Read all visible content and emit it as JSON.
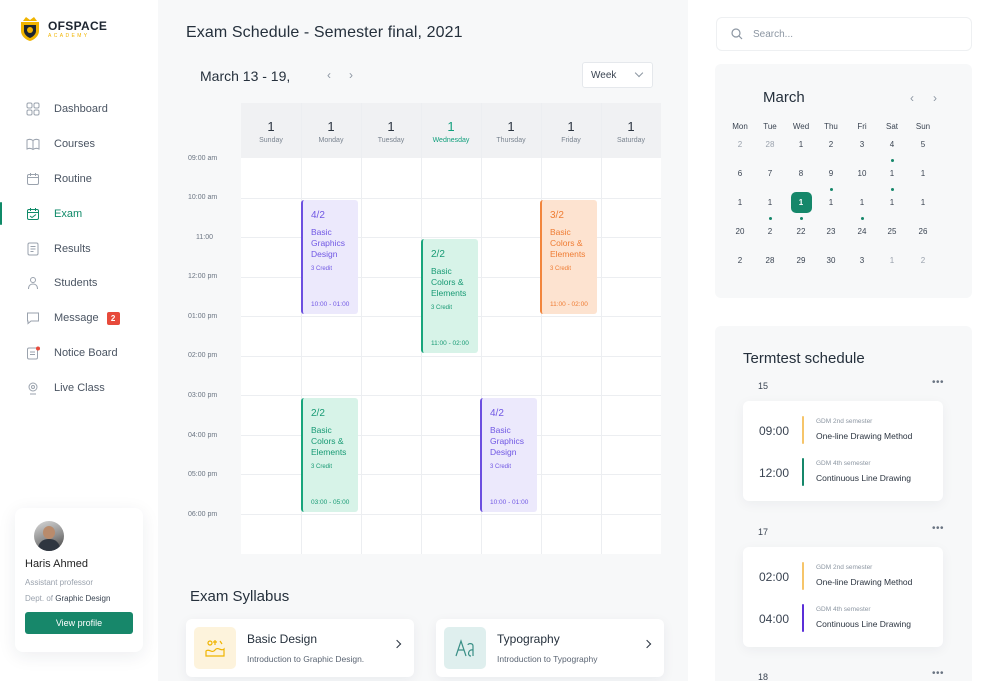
{
  "brand": {
    "name": "OFSPACE",
    "sub": "ACADEMY",
    "accent": "#15876a",
    "logo_color": "#f0b400"
  },
  "sidebar": {
    "items": [
      {
        "label": "Dashboard",
        "icon": "dashboard-icon"
      },
      {
        "label": "Courses",
        "icon": "book-icon"
      },
      {
        "label": "Routine",
        "icon": "routine-icon"
      },
      {
        "label": "Exam",
        "icon": "exam-icon",
        "active": true
      },
      {
        "label": "Results",
        "icon": "results-icon"
      },
      {
        "label": "Students",
        "icon": "students-icon"
      },
      {
        "label": "Message",
        "icon": "message-icon",
        "badge": "2"
      },
      {
        "label": "Notice Board",
        "icon": "notice-board-icon"
      },
      {
        "label": "Live Class",
        "icon": "live-class-icon"
      }
    ]
  },
  "profile": {
    "name": "Haris Ahmed",
    "role": "Assistant professor",
    "dept_prefix": "Dept. of",
    "dept": "Graphic Design",
    "button": "View profile"
  },
  "main": {
    "title": "Exam Schedule - Semester final,  2021",
    "week_range": "March 13 - 19,",
    "view_select": "Week",
    "times": [
      "09:00 am",
      "10:00 am",
      "11:00",
      "12:00 pm",
      "01:00 pm",
      "02:00 pm",
      "03:00 pm",
      "04:00 pm",
      "05:00 pm",
      "06:00 pm"
    ],
    "days": [
      {
        "num": "1",
        "name": "Sunday"
      },
      {
        "num": "1",
        "name": "Monday"
      },
      {
        "num": "1",
        "name": "Tuesday"
      },
      {
        "num": "1",
        "name": "Wednesday",
        "today": true
      },
      {
        "num": "1",
        "name": "Thursday"
      },
      {
        "num": "1",
        "name": "Friday"
      },
      {
        "num": "1",
        "name": "Saturday"
      }
    ],
    "events": [
      {
        "frac": "4/2",
        "title": "Basic Graphics Design",
        "credit": "3 Credit",
        "time": "10:00 - 01:00",
        "color": "purple"
      },
      {
        "frac": "2/2",
        "title": "Basic Colors & Elements",
        "credit": "3 Credit",
        "time": "11:00 - 02:00",
        "color": "green"
      },
      {
        "frac": "3/2",
        "title": "Basic Colors & Elements",
        "credit": "3 Credit",
        "time": "11:00 - 02:00",
        "color": "orange"
      },
      {
        "frac": "2/2",
        "title": "Basic Colors & Elements",
        "credit": "3 Credit",
        "time": "03:00 - 05:00",
        "color": "green"
      },
      {
        "frac": "4/2",
        "title": "Basic Graphics Design",
        "credit": "3 Credit",
        "time": "10:00 - 01:00",
        "color": "purple"
      }
    ],
    "syllabus_title": "Exam Syllabus",
    "syllabus": [
      {
        "name": "Basic Design",
        "desc": "Introduction to Graphic Design."
      },
      {
        "name": "Typography",
        "desc": "Introduction to Typography"
      }
    ]
  },
  "right": {
    "search_placeholder": "Search...",
    "calendar": {
      "month": "March",
      "dow": [
        "Mon",
        "Tue",
        "Wed",
        "Thu",
        "Fri",
        "Sat",
        "Sun"
      ],
      "weeks": [
        [
          "2",
          "28",
          "1",
          "2",
          "3",
          "4",
          "5"
        ],
        [
          "6",
          "7",
          "8",
          "9",
          "10",
          "1",
          "1"
        ],
        [
          "1",
          "1",
          "1",
          "1",
          "1",
          "1",
          "1"
        ],
        [
          "20",
          "2",
          "22",
          "23",
          "24",
          "25",
          "26"
        ],
        [
          "2",
          "28",
          "29",
          "30",
          "3",
          "1",
          "2"
        ]
      ]
    },
    "termtest": {
      "title": "Termtest schedule",
      "groups": [
        {
          "date": "15",
          "slots": [
            {
              "time": "09:00",
              "sem": "GDM 2nd semester",
              "name": "One-line Drawing Method",
              "color": "#f6c56a"
            },
            {
              "time": "12:00",
              "sem": "GDM 4th semester",
              "name": "Continuous Line Drawing",
              "color": "#15876a"
            }
          ]
        },
        {
          "date": "17",
          "slots": [
            {
              "time": "02:00",
              "sem": "GDM 2nd semester",
              "name": "One-line Drawing Method",
              "color": "#f6c56a"
            },
            {
              "time": "04:00",
              "sem": "GDM 4th semester",
              "name": "Continuous Line Drawing",
              "color": "#5b2fd8"
            }
          ]
        },
        {
          "date": "18",
          "slots": []
        }
      ]
    }
  }
}
